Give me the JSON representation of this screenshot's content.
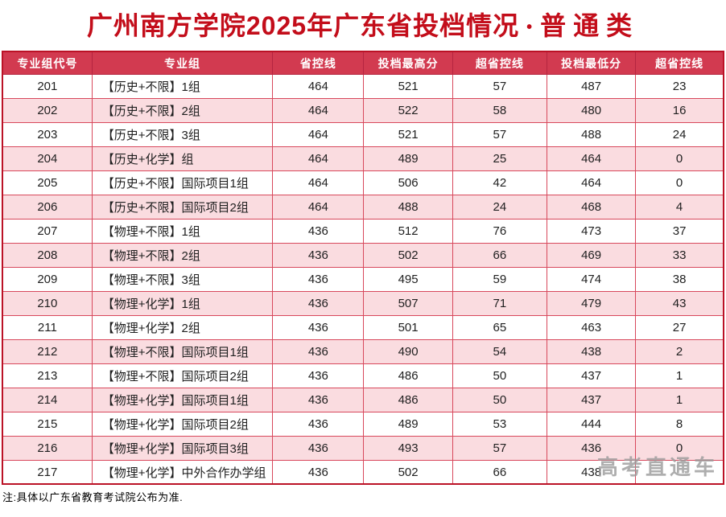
{
  "title": {
    "main": "广州南方学院2025年广东省投档情况",
    "separator": "•",
    "category": "普通类"
  },
  "table": {
    "keys": [
      "group-code",
      "group-name",
      "province-control-line",
      "max-admitted-score",
      "above-control-line-max",
      "min-admitted-score",
      "above-control-line-min"
    ],
    "headers": [
      "专业组代号",
      "专业组",
      "省控线",
      "投档最高分",
      "超省控线",
      "投档最低分",
      "超省控线"
    ],
    "rows": [
      [
        "201",
        "【历史+不限】1组",
        "464",
        "521",
        "57",
        "487",
        "23"
      ],
      [
        "202",
        "【历史+不限】2组",
        "464",
        "522",
        "58",
        "480",
        "16"
      ],
      [
        "203",
        "【历史+不限】3组",
        "464",
        "521",
        "57",
        "488",
        "24"
      ],
      [
        "204",
        "【历史+化学】组",
        "464",
        "489",
        "25",
        "464",
        "0"
      ],
      [
        "205",
        "【历史+不限】国际项目1组",
        "464",
        "506",
        "42",
        "464",
        "0"
      ],
      [
        "206",
        "【历史+不限】国际项目2组",
        "464",
        "488",
        "24",
        "468",
        "4"
      ],
      [
        "207",
        "【物理+不限】1组",
        "436",
        "512",
        "76",
        "473",
        "37"
      ],
      [
        "208",
        "【物理+不限】2组",
        "436",
        "502",
        "66",
        "469",
        "33"
      ],
      [
        "209",
        "【物理+不限】3组",
        "436",
        "495",
        "59",
        "474",
        "38"
      ],
      [
        "210",
        "【物理+化学】1组",
        "436",
        "507",
        "71",
        "479",
        "43"
      ],
      [
        "211",
        "【物理+化学】2组",
        "436",
        "501",
        "65",
        "463",
        "27"
      ],
      [
        "212",
        "【物理+不限】国际项目1组",
        "436",
        "490",
        "54",
        "438",
        "2"
      ],
      [
        "213",
        "【物理+不限】国际项目2组",
        "436",
        "486",
        "50",
        "437",
        "1"
      ],
      [
        "214",
        "【物理+化学】国际项目1组",
        "436",
        "486",
        "50",
        "437",
        "1"
      ],
      [
        "215",
        "【物理+化学】国际项目2组",
        "436",
        "489",
        "53",
        "444",
        "8"
      ],
      [
        "216",
        "【物理+化学】国际项目3组",
        "436",
        "493",
        "57",
        "436",
        "0"
      ],
      [
        "217",
        "【物理+化学】中外合作办学组",
        "436",
        "502",
        "66",
        "438",
        ""
      ]
    ]
  },
  "note": "注:具体以广东省教育考试院公布为准.",
  "watermark": "高考直通车",
  "colors": {
    "header_bg": "#d23a50",
    "row_stripe": "#fadce0",
    "grid_border": "#d8485c",
    "outer_border": "#bb1226",
    "title_red": "#c30d1a",
    "watermark_gray": "#9b9b9b"
  }
}
